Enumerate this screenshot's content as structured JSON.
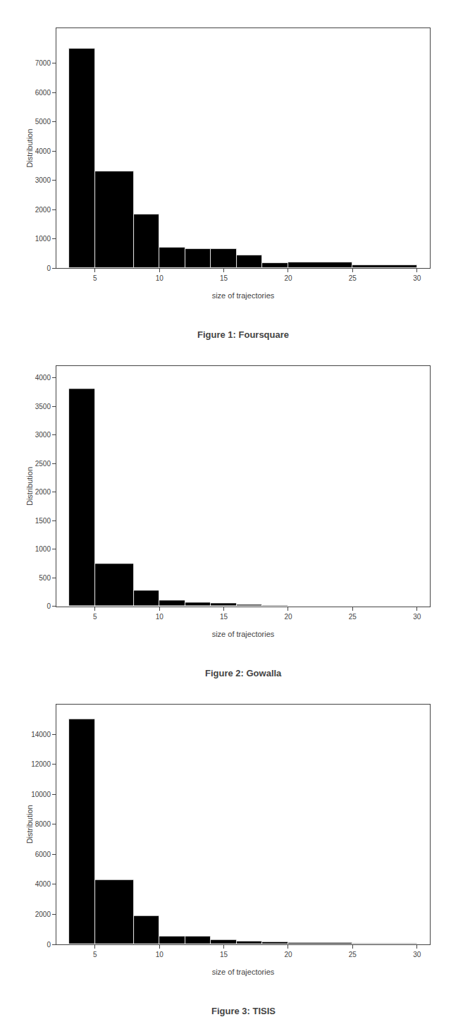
{
  "chart_data": [
    {
      "type": "histogram",
      "title": "Figure 1: Foursquare",
      "xlabel": "size of trajectories",
      "ylabel": "Distribution",
      "bins": [
        3,
        5,
        8,
        10,
        12,
        14,
        16,
        18,
        20,
        25,
        30
      ],
      "values": [
        7500,
        3300,
        1850,
        700,
        650,
        650,
        450,
        175,
        200,
        100
      ],
      "color": "#000000",
      "xlim": [
        2,
        31
      ],
      "ylim": [
        0,
        8200
      ],
      "xticks": [
        5,
        10,
        15,
        20,
        25,
        30
      ],
      "yticks": [
        0,
        1000,
        2000,
        3000,
        4000,
        5000,
        6000,
        7000
      ],
      "grid": false
    },
    {
      "type": "histogram",
      "title": "Figure 2: Gowalla",
      "xlabel": "size of trajectories",
      "ylabel": "Distribution",
      "bins": [
        3,
        5,
        8,
        10,
        12,
        14,
        16,
        18,
        20,
        25,
        30
      ],
      "values": [
        3800,
        750,
        270,
        100,
        70,
        50,
        30,
        20,
        10,
        5
      ],
      "color": "#000000",
      "xlim": [
        2,
        31
      ],
      "ylim": [
        0,
        4200
      ],
      "xticks": [
        5,
        10,
        15,
        20,
        25,
        30
      ],
      "yticks": [
        0,
        500,
        1000,
        1500,
        2000,
        2500,
        3000,
        3500,
        4000
      ],
      "grid": false
    },
    {
      "type": "histogram",
      "title": "Figure 3: TISIS",
      "xlabel": "size of trajectories",
      "ylabel": "Distribution",
      "bins": [
        3,
        5,
        8,
        10,
        12,
        14,
        16,
        18,
        20,
        25,
        30
      ],
      "values": [
        15000,
        4300,
        1900,
        550,
        550,
        300,
        200,
        150,
        100,
        75
      ],
      "color": "#000000",
      "xlim": [
        2,
        31
      ],
      "ylim": [
        0,
        16000
      ],
      "xticks": [
        5,
        10,
        15,
        20,
        25,
        30
      ],
      "yticks": [
        0,
        2000,
        4000,
        6000,
        8000,
        10000,
        12000,
        14000
      ],
      "grid": false
    }
  ]
}
